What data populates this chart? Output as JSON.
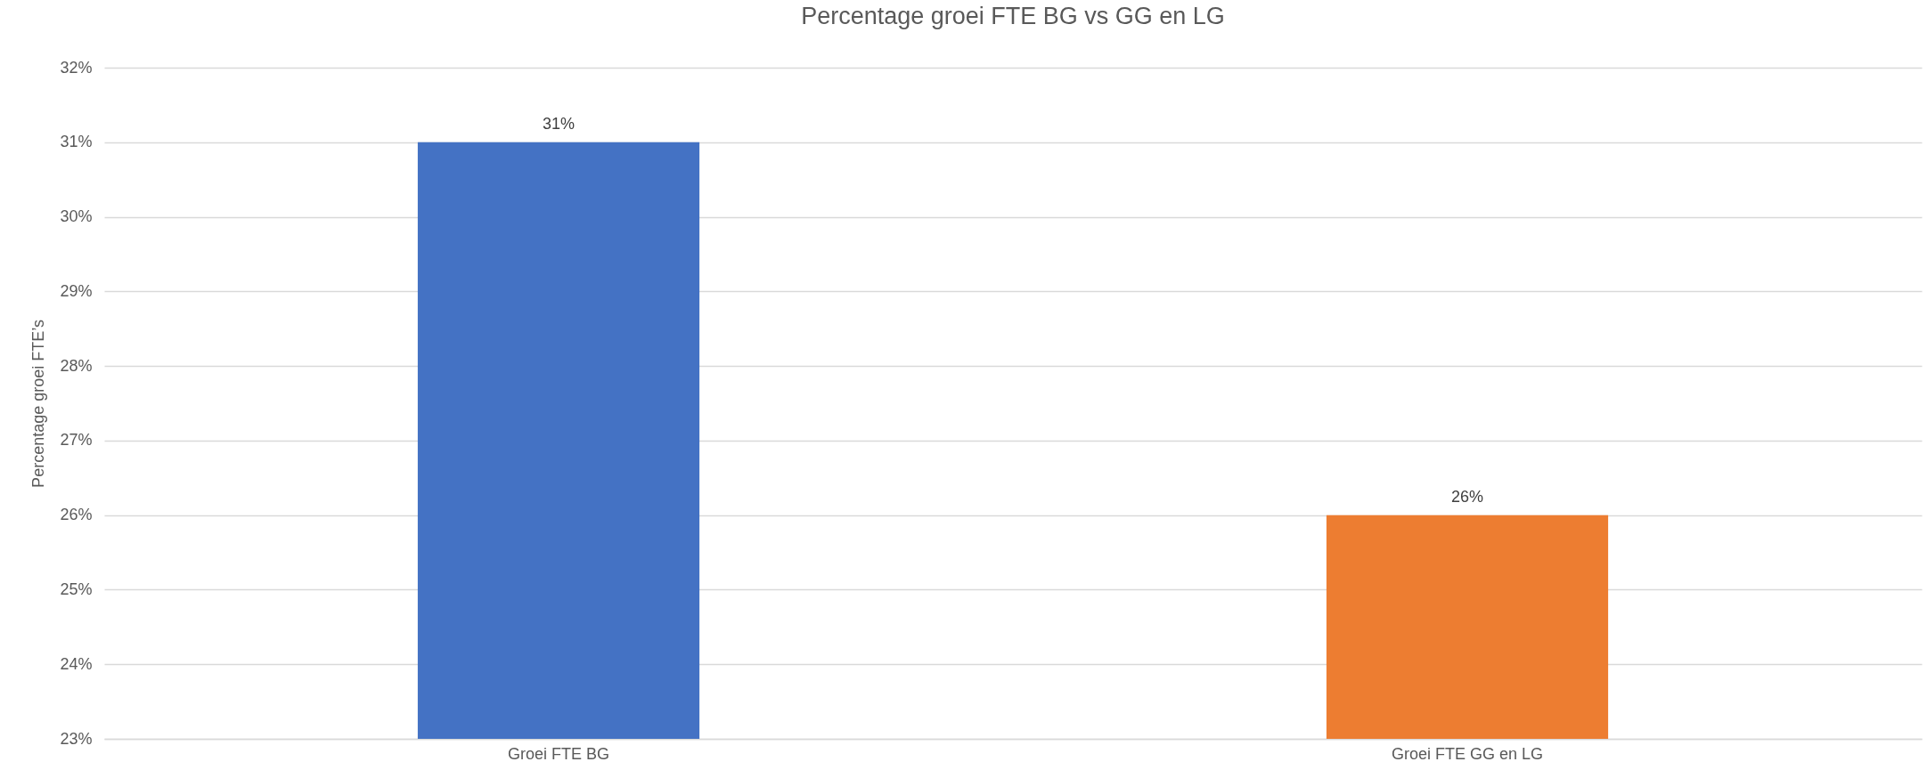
{
  "chart_data": {
    "type": "bar",
    "title": "Percentage groei FTE BG vs GG en LG",
    "ylabel": "Percentage groei FTE’s",
    "categories": [
      "Groei FTE BG",
      "Groei FTE GG en LG"
    ],
    "values": [
      31,
      26
    ],
    "colors": [
      "#4472c4",
      "#ed7d31"
    ],
    "value_labels": [
      "31%",
      "26%"
    ],
    "ylim": [
      23,
      32
    ],
    "yticks": [
      {
        "value": 23,
        "label": "23%"
      },
      {
        "value": 24,
        "label": "24%"
      },
      {
        "value": 25,
        "label": "25%"
      },
      {
        "value": 26,
        "label": "26%"
      },
      {
        "value": 27,
        "label": "27%"
      },
      {
        "value": 28,
        "label": "28%"
      },
      {
        "value": 29,
        "label": "29%"
      },
      {
        "value": 30,
        "label": "30%"
      },
      {
        "value": 31,
        "label": "31%"
      },
      {
        "value": 32,
        "label": "32%"
      }
    ],
    "grid": "y"
  }
}
